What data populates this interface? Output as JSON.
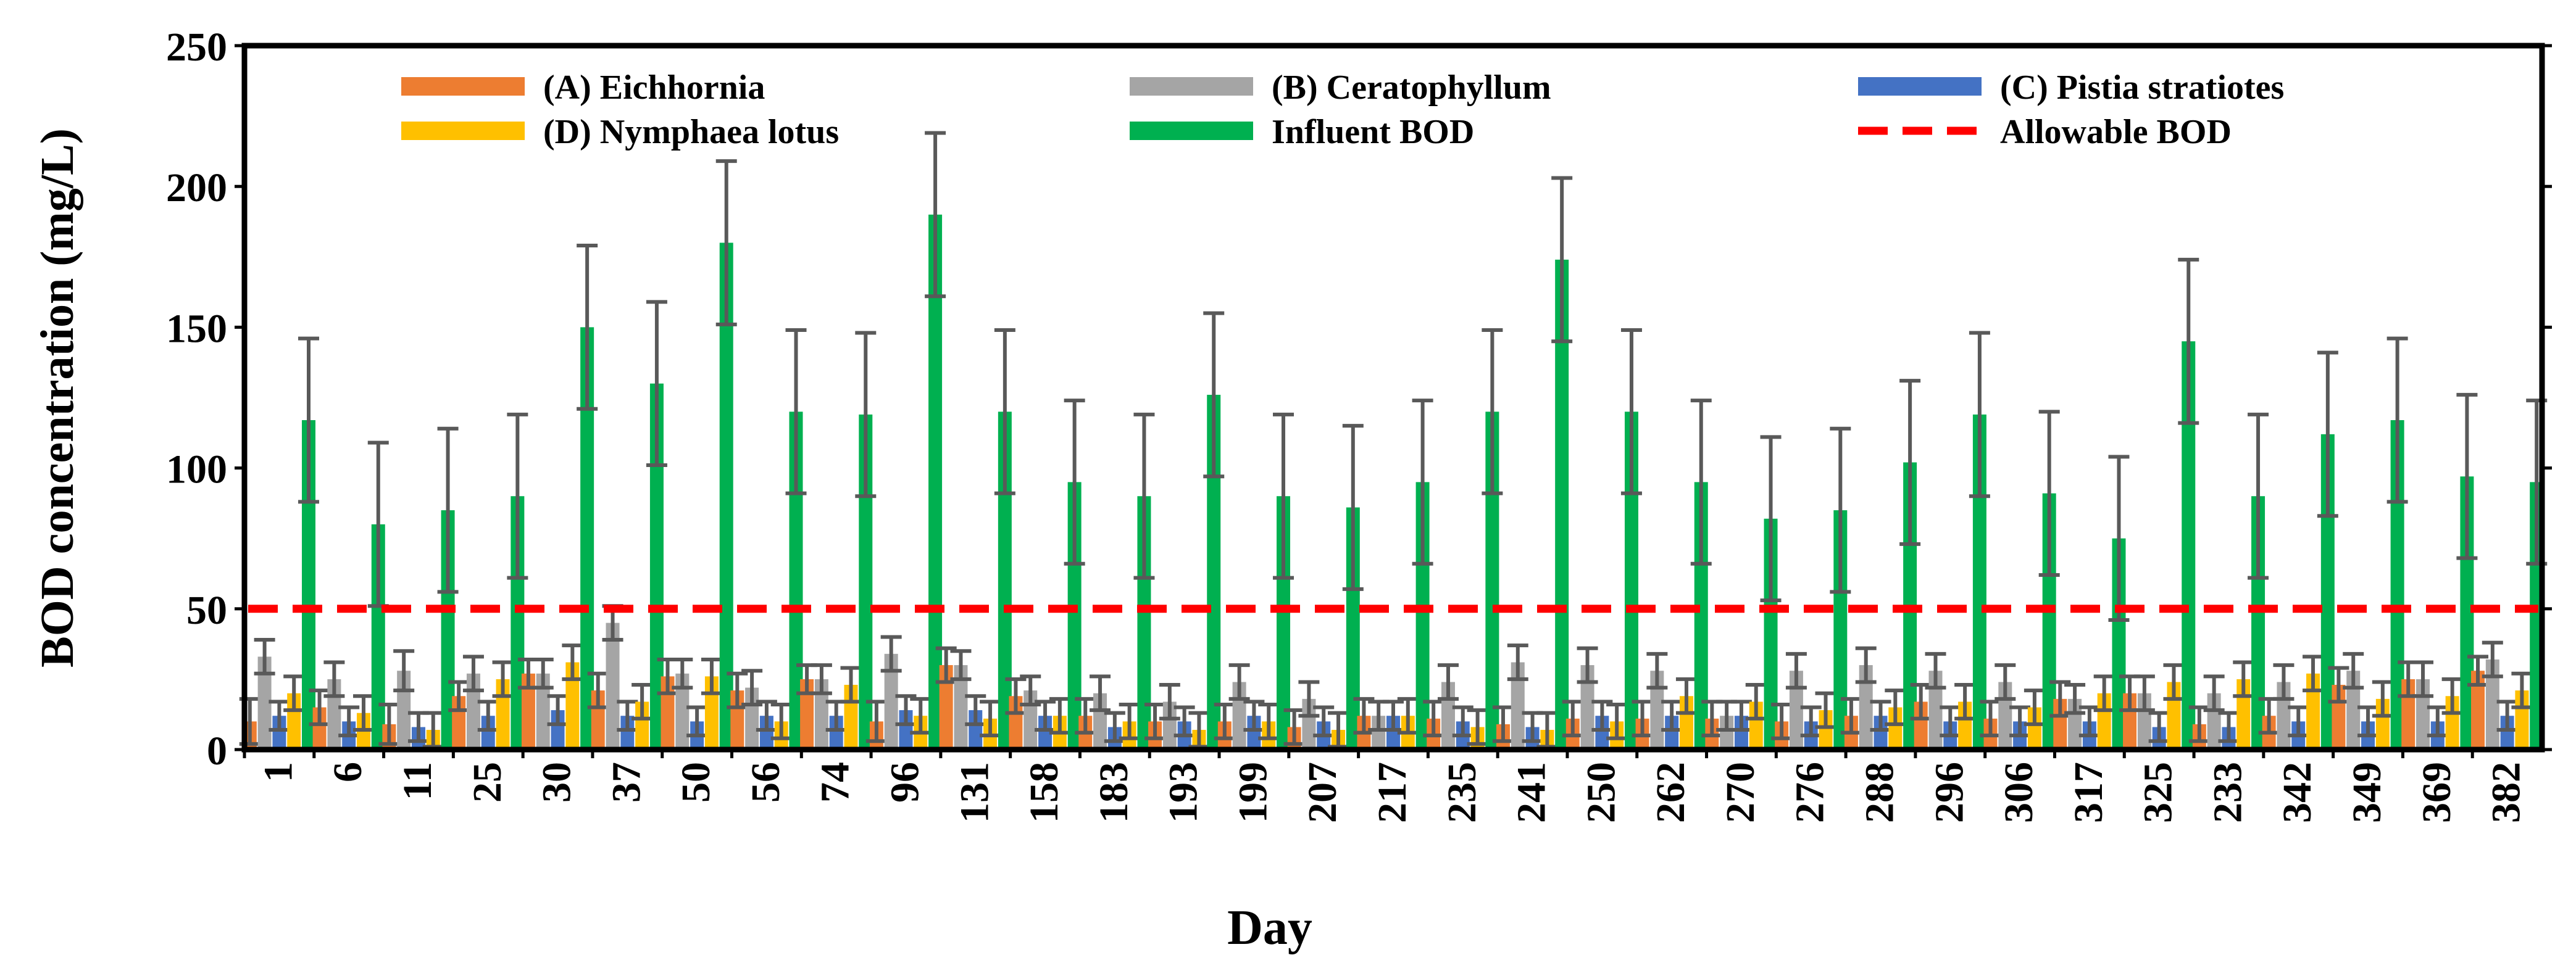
{
  "chart_data": {
    "type": "bar",
    "title": "",
    "xlabel": "Day",
    "ylabel": "BOD concentration (mg/L)",
    "ylim": [
      0,
      250
    ],
    "yticks": [
      0,
      50,
      100,
      150,
      200,
      250
    ],
    "categories": [
      "1",
      "6",
      "11",
      "25",
      "30",
      "37",
      "50",
      "56",
      "74",
      "96",
      "131",
      "158",
      "183",
      "193",
      "199",
      "207",
      "217",
      "235",
      "241",
      "250",
      "262",
      "270",
      "276",
      "288",
      "296",
      "306",
      "317",
      "325",
      "233",
      "342",
      "349",
      "369",
      "382"
    ],
    "series": [
      {
        "name": "(A) Eichhornia",
        "color": "#ED7D31",
        "values": [
          10,
          15,
          9,
          19,
          27,
          21,
          26,
          21,
          25,
          10,
          30,
          19,
          12,
          10,
          10,
          8,
          12,
          11,
          9,
          11,
          11,
          11,
          10,
          12,
          17,
          11,
          18,
          20,
          9,
          12,
          23,
          25,
          28
        ],
        "errors": [
          8,
          6,
          7,
          5,
          5,
          6,
          6,
          6,
          5,
          7,
          6,
          6,
          6,
          6,
          6,
          6,
          6,
          6,
          6,
          6,
          6,
          6,
          6,
          6,
          6,
          6,
          6,
          6,
          6,
          6,
          6,
          6,
          5
        ]
      },
      {
        "name": "(B) Ceratophyllum",
        "color": "#A5A5A5",
        "values": [
          33,
          25,
          28,
          27,
          27,
          45,
          27,
          22,
          25,
          34,
          30,
          21,
          20,
          17,
          24,
          18,
          12,
          24,
          31,
          30,
          28,
          12,
          28,
          30,
          28,
          24,
          18,
          20,
          20,
          24,
          28,
          25,
          32
        ],
        "errors": [
          6,
          6,
          7,
          6,
          5,
          6,
          5,
          6,
          5,
          6,
          5,
          5,
          6,
          6,
          6,
          6,
          5,
          6,
          6,
          6,
          6,
          5,
          6,
          6,
          6,
          6,
          5,
          6,
          6,
          6,
          6,
          6,
          6
        ]
      },
      {
        "name": "(C) Pistia stratiotes",
        "color": "#4472C4",
        "values": [
          12,
          10,
          8,
          12,
          14,
          12,
          10,
          12,
          12,
          14,
          14,
          12,
          8,
          10,
          12,
          10,
          12,
          10,
          8,
          12,
          12,
          12,
          10,
          12,
          10,
          10,
          10,
          8,
          8,
          10,
          10,
          10,
          12
        ],
        "errors": [
          5,
          5,
          5,
          5,
          5,
          5,
          5,
          5,
          5,
          5,
          5,
          5,
          5,
          5,
          5,
          5,
          5,
          5,
          5,
          5,
          5,
          5,
          5,
          5,
          5,
          5,
          5,
          5,
          5,
          5,
          5,
          5,
          5
        ]
      },
      {
        "name": "(D) Nymphaea lotus",
        "color": "#FFC000",
        "values": [
          20,
          13,
          7,
          25,
          31,
          17,
          26,
          10,
          23,
          12,
          11,
          12,
          10,
          7,
          10,
          7,
          12,
          8,
          7,
          10,
          19,
          17,
          14,
          15,
          17,
          15,
          20,
          24,
          25,
          27,
          18,
          19,
          21
        ],
        "errors": [
          6,
          6,
          6,
          6,
          6,
          6,
          6,
          6,
          6,
          6,
          6,
          6,
          6,
          6,
          6,
          6,
          6,
          6,
          6,
          6,
          6,
          6,
          6,
          6,
          6,
          6,
          6,
          6,
          6,
          6,
          6,
          6,
          6
        ]
      },
      {
        "name": "Influent BOD",
        "color": "#00B050",
        "values": [
          117,
          80,
          85,
          90,
          150,
          130,
          180,
          120,
          119,
          190,
          120,
          95,
          90,
          126,
          90,
          86,
          95,
          120,
          174,
          120,
          95,
          82,
          85,
          102,
          119,
          91,
          75,
          145,
          90,
          112,
          117,
          97,
          95
        ],
        "errors": [
          29,
          29,
          29,
          29,
          29,
          29,
          29,
          29,
          29,
          29,
          29,
          29,
          29,
          29,
          29,
          29,
          29,
          29,
          29,
          29,
          29,
          29,
          29,
          29,
          29,
          29,
          29,
          29,
          29,
          29,
          29,
          29,
          29
        ]
      }
    ],
    "reference_line": {
      "name": "Allowable BOD",
      "value": 50,
      "color": "#FF0000",
      "style": "dashed"
    },
    "legend_position": "top, inside plot",
    "grid": false
  }
}
